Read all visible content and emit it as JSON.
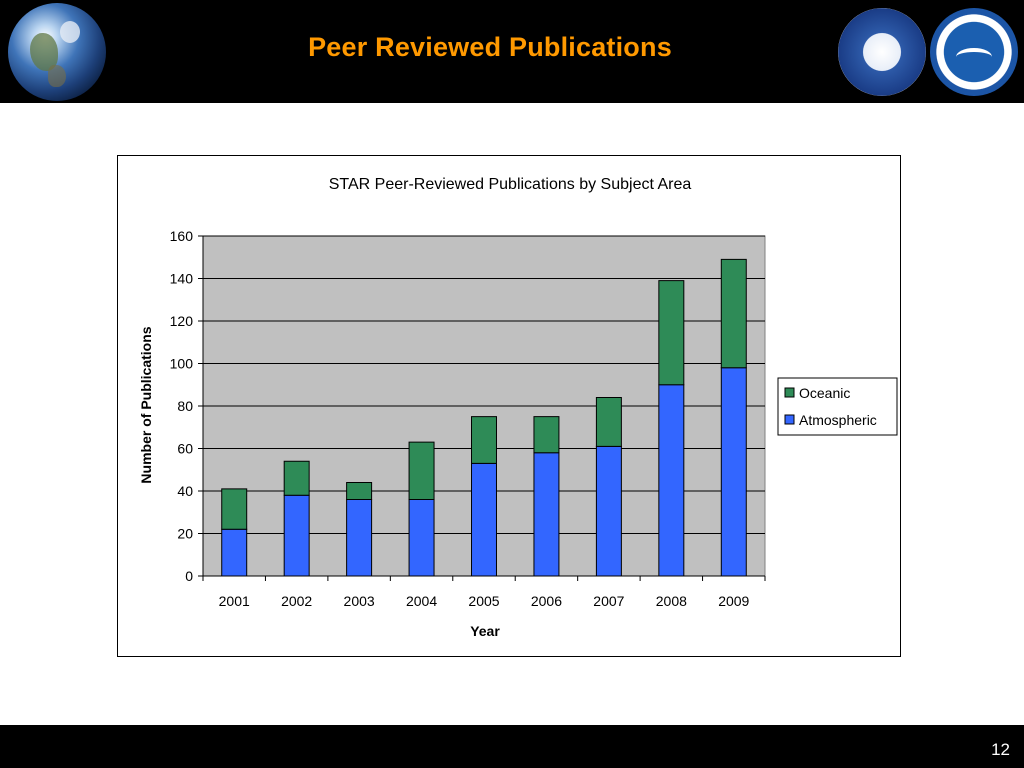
{
  "slide": {
    "title": "Peer Reviewed Publications",
    "page_number": "12",
    "logos": [
      "earth-globe",
      "noaa-nesdis-star-seal",
      "noaa-seal"
    ]
  },
  "colors": {
    "title": "#ff9900",
    "oceanic": "#2e8b57",
    "atmospheric": "#3366ff",
    "plot_area": "#c0c0c0"
  },
  "chart_data": {
    "type": "bar",
    "stacked": true,
    "title": "STAR Peer-Reviewed Publications by Subject Area",
    "xlabel": "Year",
    "ylabel": "Number of Publications",
    "categories": [
      "2001",
      "2002",
      "2003",
      "2004",
      "2005",
      "2006",
      "2007",
      "2008",
      "2009"
    ],
    "series": [
      {
        "name": "Atmospheric",
        "values": [
          22,
          38,
          36,
          36,
          53,
          58,
          61,
          90,
          98
        ]
      },
      {
        "name": "Oceanic",
        "values": [
          19,
          16,
          8,
          27,
          22,
          17,
          23,
          49,
          51
        ]
      }
    ],
    "ylim": [
      0,
      160
    ],
    "yticks": [
      "0",
      "20",
      "40",
      "60",
      "80",
      "100",
      "120",
      "140",
      "160"
    ],
    "grid": true,
    "legend_position": "right",
    "legend_order": [
      "Oceanic",
      "Atmospheric"
    ]
  }
}
